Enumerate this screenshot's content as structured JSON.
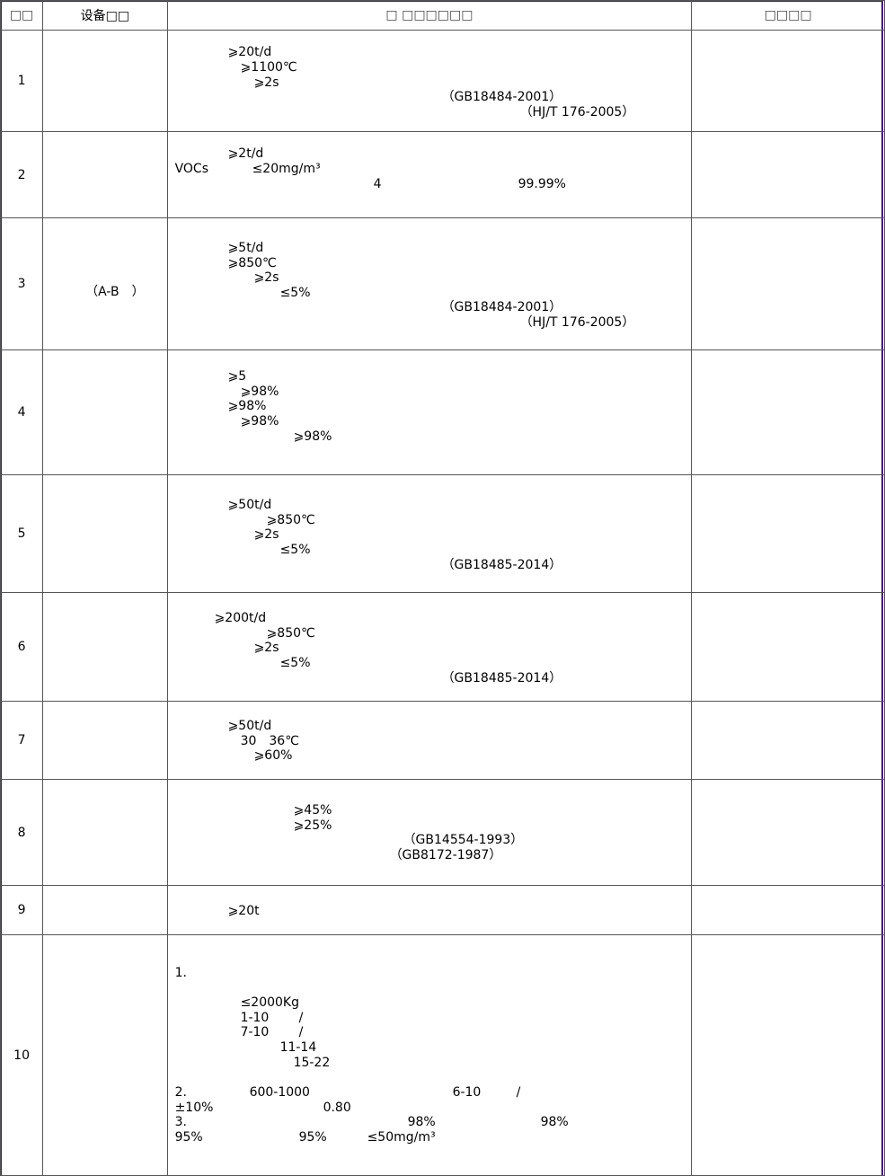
{
  "headers": {
    "no": "□□",
    "device": "设备□□",
    "requirement": "□  □□□□□□",
    "remark": "□□□□"
  },
  "rows": [
    {
      "no": "1",
      "device": "",
      "lines": [
        "⩾20t/d",
        "⩾1100℃",
        "⩾2s",
        "（GB18484-2001）",
        "（HJ/T 176-2005）"
      ]
    },
    {
      "no": "2",
      "device": "",
      "lines": [
        "⩾2t/d",
        "VOCs",
        "≤20mg/m³",
        "4",
        "99.99%"
      ]
    },
    {
      "no": "3",
      "device": "（A-B　）",
      "lines": [
        "⩾5t/d",
        "⩾850℃",
        "⩾2s",
        "≤5%",
        "（GB18484-2001）",
        "（HJ/T 176-2005）"
      ]
    },
    {
      "no": "4",
      "device": "",
      "lines": [
        "⩾5",
        "⩾98%",
        "⩾98%",
        "⩾98%",
        "⩾98%"
      ]
    },
    {
      "no": "5",
      "device": "",
      "lines": [
        "⩾50t/d",
        "⩾850℃",
        "⩾2s",
        "≤5%",
        "（GB18485-2014）"
      ]
    },
    {
      "no": "6",
      "device": "",
      "lines": [
        "⩾200t/d",
        "⩾850℃",
        "⩾2s",
        "≤5%",
        "（GB18485-2014）"
      ]
    },
    {
      "no": "7",
      "device": "",
      "lines": [
        "⩾50t/d",
        "30　36℃",
        "⩾60%"
      ]
    },
    {
      "no": "8",
      "device": "",
      "lines": [
        "⩾45%",
        "⩾25%",
        "（GB14554-1993）",
        "（GB8172-1987）"
      ]
    },
    {
      "no": "9",
      "device": "",
      "lines": [
        "⩾20t"
      ]
    },
    {
      "no": "10",
      "device": "",
      "lines": [
        "1.",
        "≤2000Kg",
        "1-10",
        "/",
        "7-10",
        "/",
        "11-14",
        "15-22",
        "2.",
        "600-1000",
        "6-10",
        "/",
        "±10%",
        "0.80",
        "3.",
        "98%",
        "98%",
        "95%",
        "95%",
        "≤50mg/m³"
      ]
    }
  ]
}
